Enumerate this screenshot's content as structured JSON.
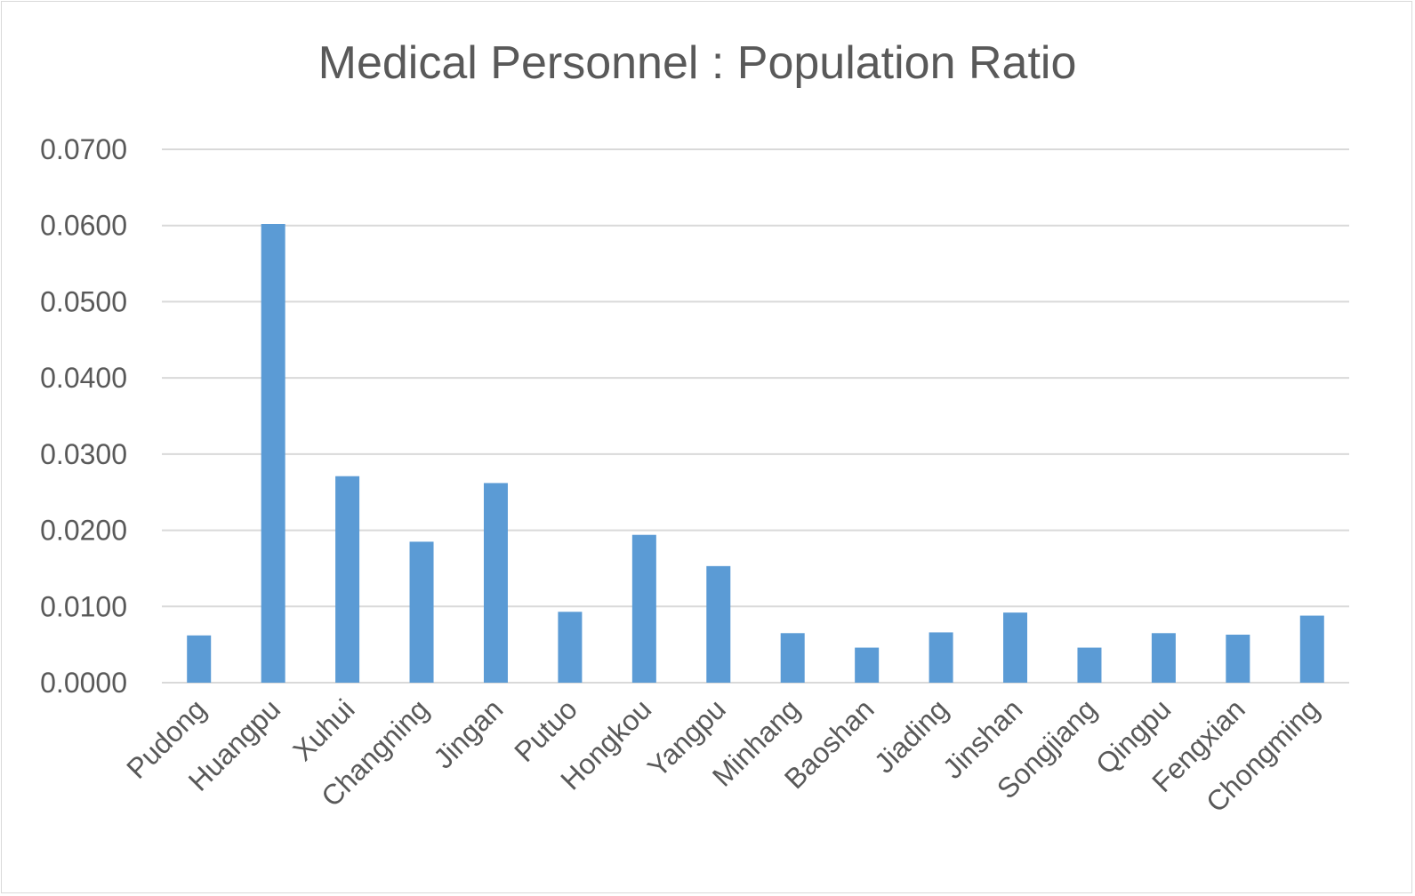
{
  "chart_data": {
    "type": "bar",
    "title": "Medical Personnel : Population Ratio",
    "xlabel": "",
    "ylabel": "",
    "categories": [
      "Pudong",
      "Huangpu",
      "Xuhui",
      "Changning",
      "Jingan",
      "Putuo",
      "Hongkou",
      "Yangpu",
      "Minhang",
      "Baoshan",
      "Jiading",
      "Jinshan",
      "Songjiang",
      "Qingpu",
      "Fengxian",
      "Chongming"
    ],
    "values": [
      0.0062,
      0.0602,
      0.0271,
      0.0185,
      0.0262,
      0.0093,
      0.0194,
      0.0153,
      0.0065,
      0.0046,
      0.0066,
      0.0092,
      0.0046,
      0.0065,
      0.0063,
      0.0088
    ],
    "ylim": [
      0,
      0.07
    ],
    "yticks": [
      "0.0000",
      "0.0100",
      "0.0200",
      "0.0300",
      "0.0400",
      "0.0500",
      "0.0600",
      "0.0700"
    ],
    "grid": true,
    "legend": "none",
    "bar_color": "#5b9bd5",
    "grid_color": "#d9d9d9",
    "text_color": "#595959"
  }
}
